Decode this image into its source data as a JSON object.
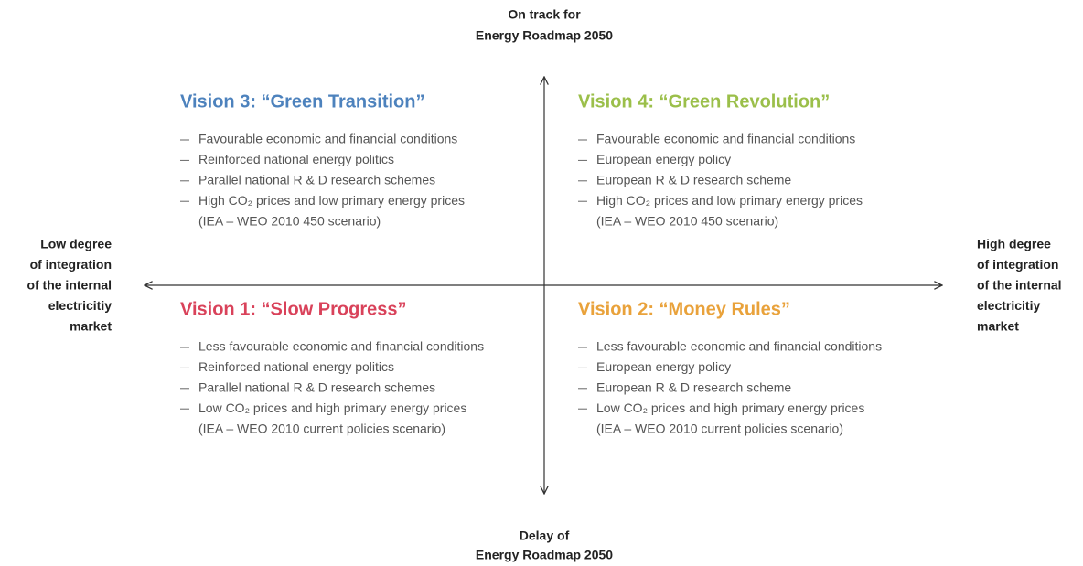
{
  "axes": {
    "top": [
      "On track for",
      "Energy Roadmap 2050"
    ],
    "bottom": [
      "Delay of",
      "Energy Roadmap 2050"
    ],
    "left": [
      "Low degree",
      "of integration",
      "of the internal",
      "electricitiy",
      "market"
    ],
    "right": [
      "High degree",
      "of integration",
      "of the internal",
      "electricitiy",
      "market"
    ]
  },
  "quadrants": [
    {
      "title": "Vision 3: “Green Transition”",
      "color": "#4d82bd",
      "bullets": [
        "Favourable economic and financial conditions",
        "Reinforced national energy politics",
        "Parallel national R & D research schemes",
        "High CO₂ prices and low primary energy prices"
      ],
      "note": "(IEA – WEO 2010 450 scenario)"
    },
    {
      "title": "Vision 4: “Green Revolution”",
      "color": "#9bbf4a",
      "bullets": [
        "Favourable economic and financial conditions",
        "European energy policy",
        "European R & D research scheme",
        "High CO₂ prices and low primary energy prices"
      ],
      "note": "(IEA – WEO 2010 450 scenario)"
    },
    {
      "title": "Vision 1: “Slow Progress”",
      "color": "#d9425a",
      "bullets": [
        "Less favourable economic and financial conditions",
        "Reinforced national energy politics",
        "Parallel national R & D research schemes",
        "Low CO₂ prices and high primary energy prices"
      ],
      "note": "(IEA – WEO 2010 current policies scenario)"
    },
    {
      "title": "Vision 2: “Money Rules”",
      "color": "#e9a23b",
      "bullets": [
        "Less favourable economic and financial conditions",
        "European energy policy",
        "European R & D research scheme",
        "Low CO₂ prices and high primary energy prices"
      ],
      "note": "(IEA – WEO 2010 current policies scenario)"
    }
  ]
}
